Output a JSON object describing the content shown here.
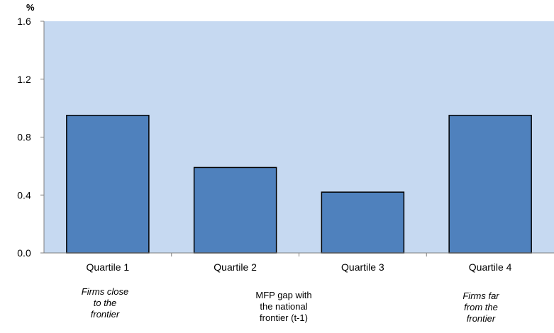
{
  "chart_data": {
    "type": "bar",
    "title": "",
    "ylabel": "%",
    "xlabel": "MFP  gap with\nthe national\nfrontier (t-1)",
    "categories": [
      "Quartile 1",
      "Quartile 2",
      "Quartile 3",
      "Quartile 4"
    ],
    "values": [
      0.95,
      0.59,
      0.42,
      0.95
    ],
    "ylim": [
      0,
      1.6
    ],
    "yticks": [
      "0.0",
      "0.4",
      "0.8",
      "1.2",
      "1.6"
    ],
    "grid": false,
    "legend": "none",
    "annotations": {
      "left": "Firms close\nto the\nfrontier",
      "right": "Firms far\nfrom the\nfrontier"
    },
    "colors": {
      "plot_background": "#c6d9f1",
      "bar_fill": "#4f81bd",
      "bar_stroke": "#000000",
      "axis": "#7f7f7f"
    }
  }
}
